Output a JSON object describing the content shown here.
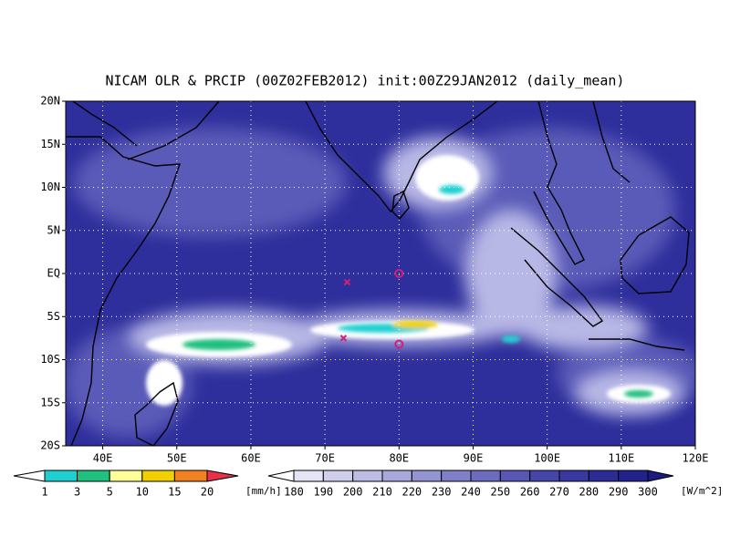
{
  "title": "NICAM OLR & PRCIP (00Z02FEB2012) init:00Z29JAN2012 (daily_mean)",
  "map": {
    "xlim": [
      35,
      120
    ],
    "ylim": [
      -20,
      20
    ],
    "xticks": [
      {
        "value": 40,
        "label": "40E"
      },
      {
        "value": 50,
        "label": "50E"
      },
      {
        "value": 60,
        "label": "60E"
      },
      {
        "value": 70,
        "label": "70E"
      },
      {
        "value": 80,
        "label": "80E"
      },
      {
        "value": 90,
        "label": "90E"
      },
      {
        "value": 100,
        "label": "100E"
      },
      {
        "value": 110,
        "label": "110E"
      },
      {
        "value": 120,
        "label": "120E"
      }
    ],
    "yticks": [
      {
        "value": -20,
        "label": "20S"
      },
      {
        "value": -15,
        "label": "15S"
      },
      {
        "value": -10,
        "label": "10S"
      },
      {
        "value": -5,
        "label": "5S"
      },
      {
        "value": 0,
        "label": "EQ"
      },
      {
        "value": 5,
        "label": "5N"
      },
      {
        "value": 10,
        "label": "10N"
      },
      {
        "value": 15,
        "label": "15N"
      },
      {
        "value": 20,
        "label": "20N"
      }
    ],
    "grid": true,
    "markers": [
      {
        "symbol": "x",
        "lon": 73,
        "lat": -1,
        "color": "#d0207a"
      },
      {
        "symbol": "x",
        "lon": 72.5,
        "lat": -7.5,
        "color": "#d0207a"
      },
      {
        "symbol": "o",
        "lon": 80,
        "lat": 0,
        "color": "#d0207a"
      },
      {
        "symbol": "o",
        "lon": 80,
        "lat": -8.2,
        "color": "#d0207a"
      }
    ]
  },
  "precip_colorbar": {
    "levels": [
      1,
      3,
      5,
      10,
      15,
      20
    ],
    "unit": "[mm/h]",
    "colors": [
      "#ffffff",
      "#20d0d0",
      "#20c080",
      "#ffff99",
      "#f0d000",
      "#f08020",
      "#e83048"
    ]
  },
  "olr_colorbar": {
    "levels": [
      180,
      190,
      200,
      210,
      220,
      230,
      240,
      250,
      260,
      270,
      280,
      290,
      300
    ],
    "unit": "[W/m^2]",
    "colors": [
      "#ffffff",
      "#e4e4f4",
      "#cfcfec",
      "#bcbce4",
      "#a8a8dc",
      "#9494d2",
      "#8080c8",
      "#6c6cbe",
      "#5858b4",
      "#4646aa",
      "#3838a0",
      "#2c2c96",
      "#22228c",
      "#1a1a80"
    ]
  }
}
